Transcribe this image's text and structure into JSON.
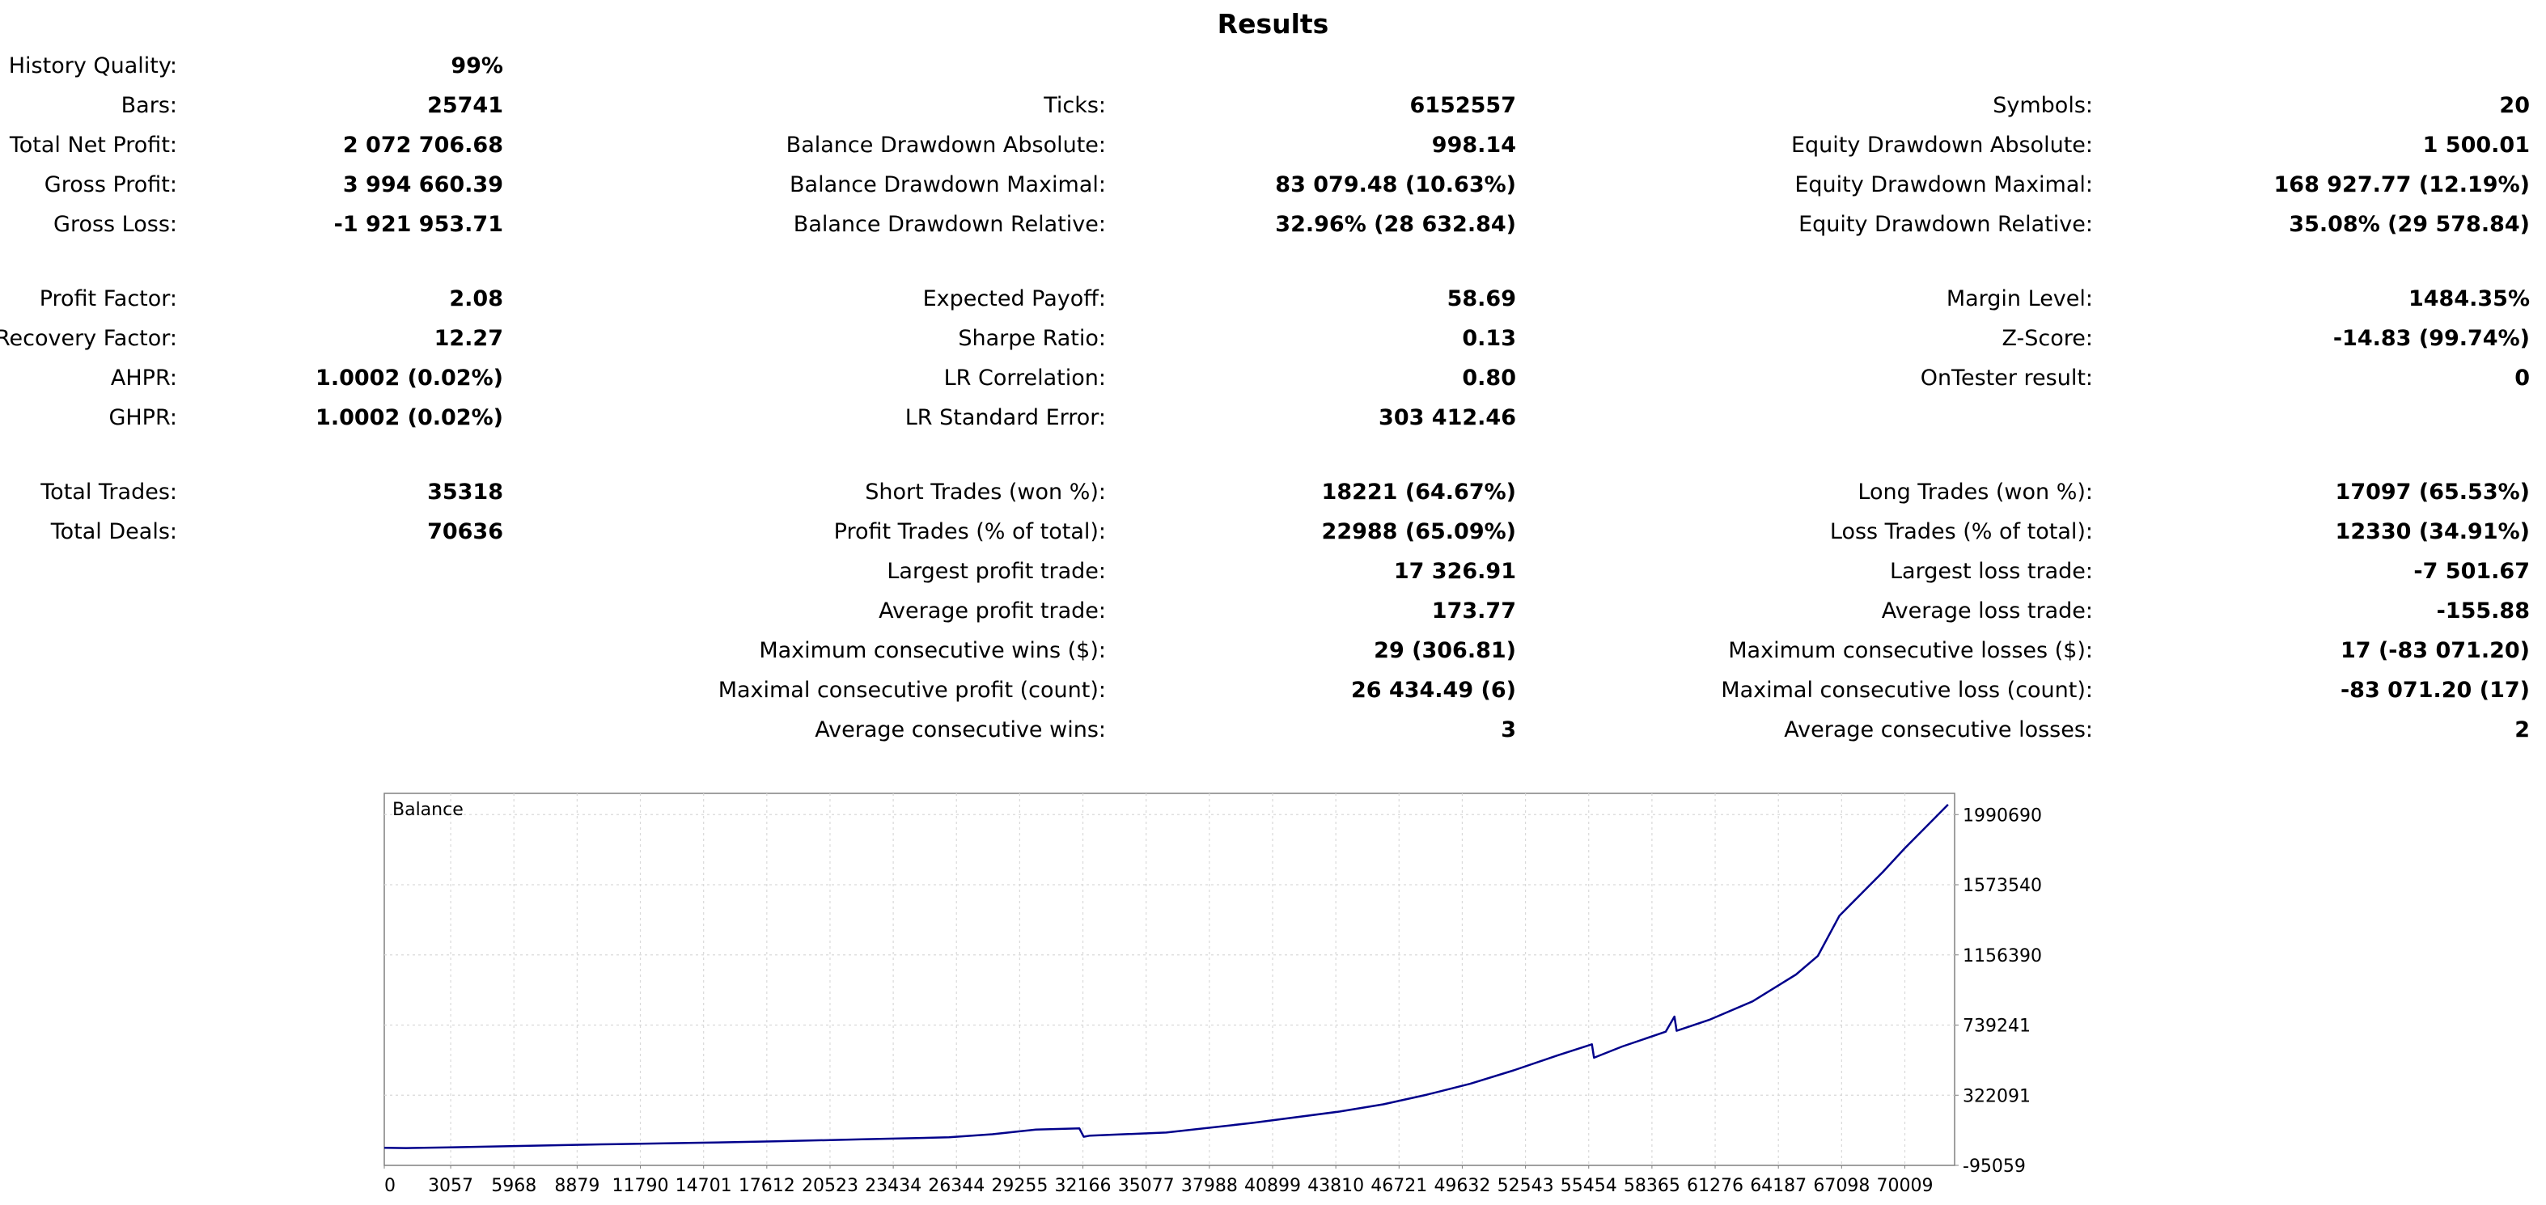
{
  "title": "Results",
  "stats": {
    "history_quality": {
      "label": "History Quality:",
      "value": "99%"
    },
    "bars": {
      "label": "Bars:",
      "value": "25741"
    },
    "ticks": {
      "label": "Ticks:",
      "value": "6152557"
    },
    "symbols": {
      "label": "Symbols:",
      "value": "20"
    },
    "total_net_profit": {
      "label": "Total Net Profit:",
      "value": "2 072 706.68"
    },
    "balance_dd_absolute": {
      "label": "Balance Drawdown Absolute:",
      "value": "998.14"
    },
    "equity_dd_absolute": {
      "label": "Equity Drawdown Absolute:",
      "value": "1 500.01"
    },
    "gross_profit": {
      "label": "Gross Profit:",
      "value": "3 994 660.39"
    },
    "balance_dd_maximal": {
      "label": "Balance Drawdown Maximal:",
      "value": "83 079.48 (10.63%)"
    },
    "equity_dd_maximal": {
      "label": "Equity Drawdown Maximal:",
      "value": "168 927.77 (12.19%)"
    },
    "gross_loss": {
      "label": "Gross Loss:",
      "value": "-1 921 953.71"
    },
    "balance_dd_relative": {
      "label": "Balance Drawdown Relative:",
      "value": "32.96% (28 632.84)"
    },
    "equity_dd_relative": {
      "label": "Equity Drawdown Relative:",
      "value": "35.08% (29 578.84)"
    },
    "profit_factor": {
      "label": "Profit Factor:",
      "value": "2.08"
    },
    "expected_payoff": {
      "label": "Expected Payoff:",
      "value": "58.69"
    },
    "margin_level": {
      "label": "Margin Level:",
      "value": "1484.35%"
    },
    "recovery_factor": {
      "label": "Recovery Factor:",
      "value": "12.27"
    },
    "sharpe_ratio": {
      "label": "Sharpe Ratio:",
      "value": "0.13"
    },
    "z_score": {
      "label": "Z-Score:",
      "value": "-14.83 (99.74%)"
    },
    "ahpr": {
      "label": "AHPR:",
      "value": "1.0002 (0.02%)"
    },
    "lr_correlation": {
      "label": "LR Correlation:",
      "value": "0.80"
    },
    "ontester_result": {
      "label": "OnTester result:",
      "value": "0"
    },
    "ghpr": {
      "label": "GHPR:",
      "value": "1.0002 (0.02%)"
    },
    "lr_standard_error": {
      "label": "LR Standard Error:",
      "value": "303 412.46"
    },
    "total_trades": {
      "label": "Total Trades:",
      "value": "35318"
    },
    "short_trades": {
      "label": "Short Trades (won %):",
      "value": "18221 (64.67%)"
    },
    "long_trades": {
      "label": "Long Trades (won %):",
      "value": "17097 (65.53%)"
    },
    "total_deals": {
      "label": "Total Deals:",
      "value": "70636"
    },
    "profit_trades": {
      "label": "Profit Trades (% of total):",
      "value": "22988 (65.09%)"
    },
    "loss_trades": {
      "label": "Loss Trades (% of total):",
      "value": "12330 (34.91%)"
    },
    "largest_profit_trade": {
      "label": "Largest profit trade:",
      "value": "17 326.91"
    },
    "largest_loss_trade": {
      "label": "Largest loss trade:",
      "value": "-7 501.67"
    },
    "average_profit_trade": {
      "label": "Average profit trade:",
      "value": "173.77"
    },
    "average_loss_trade": {
      "label": "Average loss trade:",
      "value": "-155.88"
    },
    "max_consecutive_wins": {
      "label": "Maximum consecutive wins ($):",
      "value": "29 (306.81)"
    },
    "max_consecutive_losses": {
      "label": "Maximum consecutive losses ($):",
      "value": "17 (-83 071.20)"
    },
    "maximal_consecutive_profit": {
      "label": "Maximal consecutive profit (count):",
      "value": "26 434.49 (6)"
    },
    "maximal_consecutive_loss": {
      "label": "Maximal consecutive loss (count):",
      "value": "-83 071.20 (17)"
    },
    "average_consecutive_wins": {
      "label": "Average consecutive wins:",
      "value": "3"
    },
    "average_consecutive_losses": {
      "label": "Average consecutive losses:",
      "value": "2"
    }
  },
  "chart_data": {
    "type": "line",
    "legend": "Balance",
    "line_color": "#00008b",
    "grid": true,
    "x_ticks": [
      "0",
      "3057",
      "5968",
      "8879",
      "11790",
      "14701",
      "17612",
      "20523",
      "23434",
      "26344",
      "29255",
      "32166",
      "35077",
      "37988",
      "40899",
      "43810",
      "46721",
      "49632",
      "52543",
      "55454",
      "58365",
      "61276",
      "64187",
      "67098",
      "70009"
    ],
    "y_ticks": [
      "1990690",
      "1573540",
      "1156390",
      "739241",
      "322091",
      "-95059"
    ],
    "xlim": [
      0,
      72300
    ],
    "ylim": [
      -95059,
      2117000
    ],
    "series": [
      {
        "name": "Balance",
        "x": [
          0,
          1000,
          3000,
          6000,
          10000,
          14000,
          18000,
          22000,
          26000,
          28000,
          30000,
          32000,
          32200,
          32500,
          36000,
          40000,
          44000,
          46000,
          48000,
          50000,
          52000,
          54000,
          55600,
          55700,
          57000,
          59000,
          59400,
          59500,
          61000,
          63000,
          64000,
          65000,
          66000,
          67000,
          68000,
          69000,
          70000,
          71000,
          72000
        ],
        "y": [
          10000,
          8000,
          12000,
          20000,
          30000,
          38000,
          48000,
          60000,
          72000,
          90000,
          118000,
          125000,
          75000,
          82000,
          100000,
          158000,
          225000,
          268000,
          325000,
          390000,
          470000,
          558000,
          625000,
          545000,
          612000,
          700000,
          790000,
          705000,
          770000,
          880000,
          960000,
          1040000,
          1150000,
          1390000,
          1520000,
          1650000,
          1790000,
          1920000,
          2050000
        ]
      }
    ]
  }
}
